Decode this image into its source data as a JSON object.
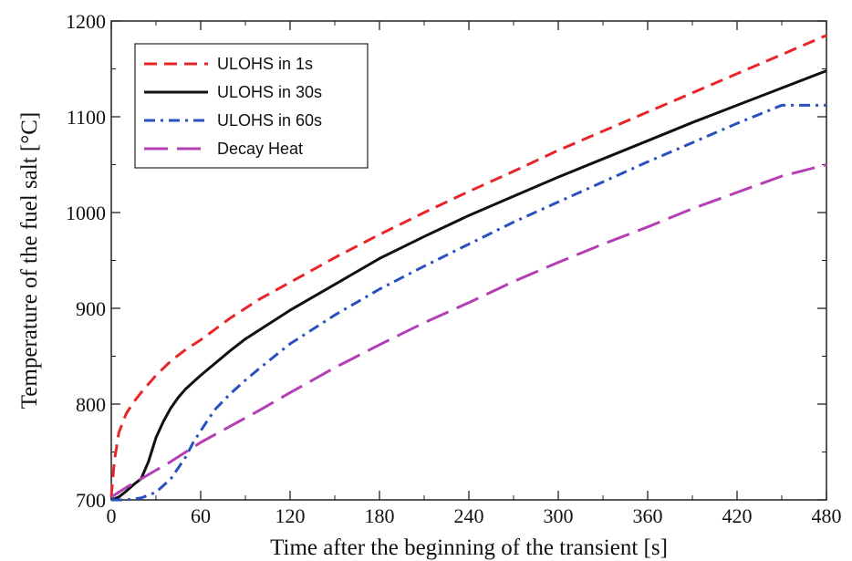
{
  "chart_data": {
    "type": "line",
    "title": "",
    "xlabel": "Time after the beginning of the transient [s]",
    "ylabel": "Temperature of the fuel salt [°C]",
    "xlim": [
      0,
      480
    ],
    "ylim": [
      700,
      1200
    ],
    "xticks": [
      0,
      60,
      120,
      180,
      240,
      300,
      360,
      420,
      480
    ],
    "yticks": [
      700,
      800,
      900,
      1000,
      1100,
      1200
    ],
    "xtick_labels": [
      "0",
      "60",
      "120",
      "180",
      "240",
      "300",
      "360",
      "420",
      "480"
    ],
    "ytick_labels": [
      "700",
      "800",
      "900",
      "1000",
      "1100",
      "1200"
    ],
    "grid": false,
    "legend_position": "top-left",
    "series": [
      {
        "name": "ULOHS in 1s",
        "color": "#e8262a",
        "dash": "dashed",
        "x": [
          0,
          2,
          5,
          10,
          15,
          20,
          30,
          40,
          50,
          60,
          80,
          100,
          120,
          150,
          180,
          210,
          240,
          270,
          300,
          330,
          360,
          390,
          420,
          450,
          480
        ],
        "y": [
          703,
          740,
          770,
          790,
          802,
          812,
          830,
          845,
          857,
          867,
          890,
          910,
          927,
          953,
          977,
          1000,
          1022,
          1043,
          1065,
          1085,
          1105,
          1125,
          1145,
          1165,
          1185
        ]
      },
      {
        "name": "ULOHS in 30s",
        "color": "#111111",
        "dash": "solid",
        "x": [
          0,
          5,
          10,
          15,
          20,
          25,
          30,
          35,
          40,
          45,
          50,
          55,
          60,
          70,
          80,
          90,
          100,
          120,
          150,
          180,
          210,
          240,
          270,
          300,
          330,
          360,
          390,
          420,
          450,
          480
        ],
        "y": [
          700,
          703,
          709,
          716,
          722,
          740,
          765,
          782,
          796,
          807,
          816,
          823,
          830,
          843,
          856,
          868,
          878,
          898,
          925,
          952,
          975,
          997,
          1017,
          1037,
          1056,
          1075,
          1094,
          1112,
          1130,
          1148
        ]
      },
      {
        "name": "ULOHS in 60s",
        "color": "#2a4fbf",
        "dash": "dashdot",
        "x": [
          0,
          10,
          20,
          30,
          40,
          50,
          55,
          60,
          65,
          70,
          80,
          90,
          100,
          120,
          150,
          180,
          210,
          240,
          270,
          300,
          330,
          360,
          390,
          420,
          450,
          480
        ],
        "y": [
          700,
          700,
          702,
          708,
          722,
          745,
          760,
          772,
          784,
          795,
          811,
          825,
          838,
          863,
          893,
          920,
          944,
          967,
          990,
          1011,
          1032,
          1053,
          1073,
          1093,
          1112,
          1112
        ]
      },
      {
        "name": "Decay Heat",
        "color": "#b43fb4",
        "dash": "longdash",
        "x": [
          0,
          5,
          10,
          20,
          30,
          40,
          50,
          60,
          80,
          100,
          120,
          150,
          180,
          210,
          240,
          270,
          300,
          330,
          360,
          390,
          420,
          450,
          480
        ],
        "y": [
          703,
          708,
          713,
          722,
          731,
          740,
          750,
          760,
          777,
          794,
          812,
          838,
          862,
          885,
          906,
          928,
          948,
          967,
          985,
          1004,
          1021,
          1038,
          1050
        ]
      }
    ]
  }
}
